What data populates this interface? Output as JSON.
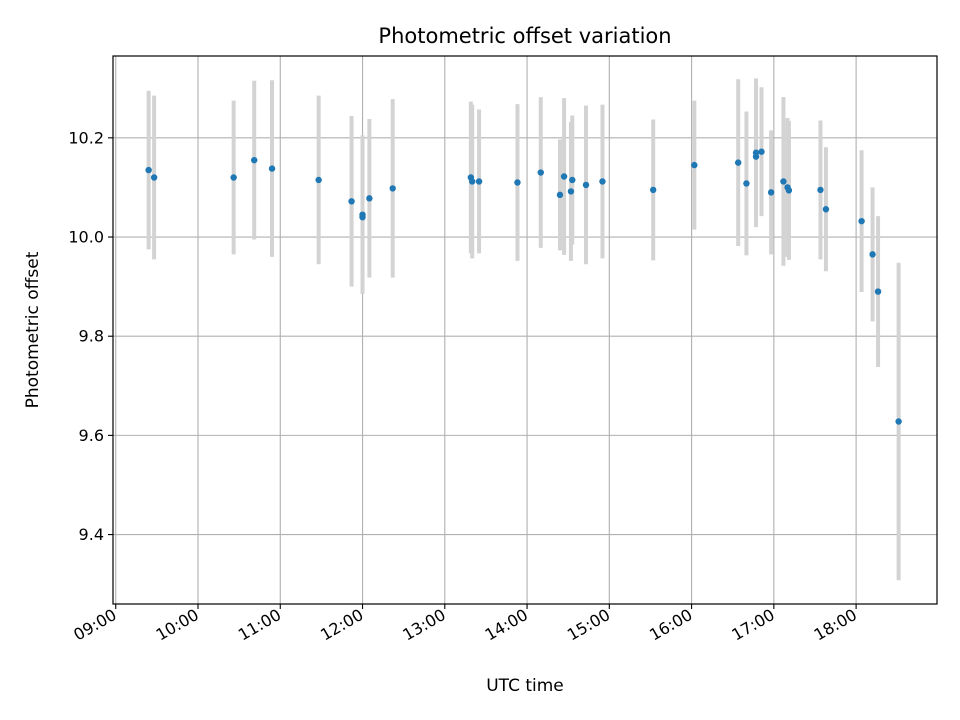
{
  "chart_data": {
    "type": "scatter",
    "title": "Photometric offset variation",
    "xlabel": "UTC time",
    "ylabel": "Photometric offset",
    "x_unit": "time_of_day",
    "xlim": [
      "08:58",
      "18:59"
    ],
    "ylim": [
      9.26,
      10.365
    ],
    "x_ticks": [
      "09:00",
      "10:00",
      "11:00",
      "12:00",
      "13:00",
      "14:00",
      "15:00",
      "16:00",
      "17:00",
      "18:00"
    ],
    "y_ticks": [
      9.4,
      9.6,
      9.8,
      10.0,
      10.2
    ],
    "y_tick_labels": [
      "9.4",
      "9.6",
      "9.8",
      "10.0",
      "10.2"
    ],
    "grid": true,
    "marker_color": "#1f77b4",
    "errorbar_color": "#d3d3d3",
    "series": [
      {
        "x": [
          "09:24",
          "09:28",
          "10:26",
          "10:41",
          "10:54",
          "11:28",
          "11:52",
          "12:00",
          "12:00",
          "12:05",
          "12:22",
          "13:19",
          "13:20",
          "13:25",
          "13:53",
          "14:10",
          "14:24",
          "14:27",
          "14:32",
          "14:33",
          "14:43",
          "14:55",
          "15:32",
          "16:02",
          "16:34",
          "16:40",
          "16:47",
          "16:47",
          "16:51",
          "16:58",
          "17:07",
          "17:10",
          "17:11",
          "17:34",
          "17:38",
          "18:04",
          "18:12",
          "18:16",
          "18:31"
        ],
        "y": [
          10.135,
          10.12,
          10.12,
          10.155,
          10.138,
          10.115,
          10.072,
          10.045,
          10.04,
          10.078,
          10.098,
          10.12,
          10.112,
          10.112,
          10.11,
          10.13,
          10.085,
          10.122,
          10.092,
          10.115,
          10.105,
          10.112,
          10.095,
          10.145,
          10.15,
          10.108,
          10.17,
          10.162,
          10.172,
          10.09,
          10.112,
          10.1,
          10.094,
          10.095,
          10.056,
          10.032,
          9.965,
          9.89,
          9.628
        ],
        "yerr": [
          0.16,
          0.165,
          0.155,
          0.16,
          0.178,
          0.17,
          0.172,
          0.16,
          0.153,
          0.16,
          0.18,
          0.153,
          0.155,
          0.145,
          0.158,
          0.152,
          0.112,
          0.158,
          0.14,
          0.13,
          0.16,
          0.155,
          0.142,
          0.13,
          0.168,
          0.145,
          0.15,
          0.14,
          0.13,
          0.125,
          0.17,
          0.14,
          0.14,
          0.14,
          0.125,
          0.143,
          0.135,
          0.152,
          0.32
        ]
      }
    ]
  }
}
